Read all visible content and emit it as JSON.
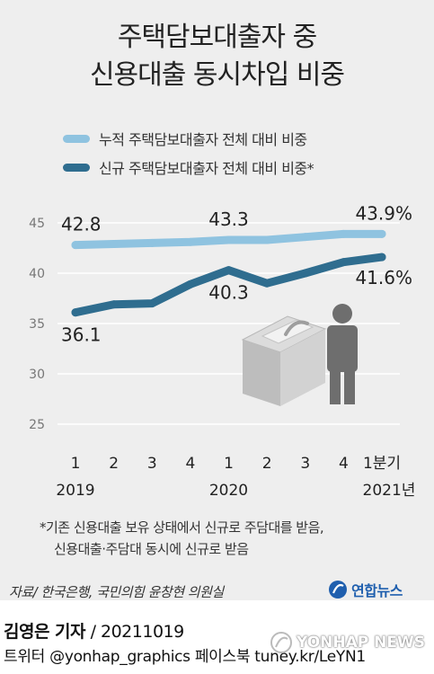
{
  "header": {
    "title_line1": "주택담보대출자 중",
    "title_line2": "신용대출 동시차입 비중"
  },
  "colors": {
    "background": "#eeeeee",
    "series_cumulative": "#8fc3e0",
    "series_new": "#2f6d8f"
  },
  "chart_data": {
    "type": "line",
    "x_ticks": [
      "1",
      "2",
      "3",
      "4",
      "1",
      "2",
      "3",
      "4",
      "1분기"
    ],
    "x_year_labels": [
      "2019",
      "2020",
      "2021년"
    ],
    "ylim": [
      25,
      45
    ],
    "y_ticks": [
      25,
      30,
      35,
      40,
      45
    ],
    "series": [
      {
        "name": "누적 주택담보대출자 전체 대비 비중",
        "values": [
          42.8,
          42.9,
          43.0,
          43.1,
          43.3,
          43.3,
          43.6,
          43.9,
          43.9
        ]
      },
      {
        "name": "신규 주택담보대출자 전체 대비 비중*",
        "values": [
          36.1,
          36.9,
          37.0,
          38.9,
          40.3,
          39.0,
          40.0,
          41.1,
          41.6
        ]
      }
    ],
    "data_labels": [
      {
        "series": 0,
        "index": 0,
        "text": "42.8"
      },
      {
        "series": 0,
        "index": 4,
        "text": "43.3"
      },
      {
        "series": 0,
        "index": 8,
        "text": "43.9%"
      },
      {
        "series": 1,
        "index": 0,
        "text": "36.1"
      },
      {
        "series": 1,
        "index": 4,
        "text": "40.3"
      },
      {
        "series": 1,
        "index": 8,
        "text": "41.6%"
      }
    ],
    "grid": true,
    "legend_placement": "top"
  },
  "notes": {
    "line1": "*기존 신용대출 보유 상태에서 신규로 주담대를 받음,",
    "line2": "신용대출·주담대 동시에 신규로 받음"
  },
  "source": "자료/ 한국은행, 국민의힘 윤창현 의원실",
  "logo_text": "연합뉴스",
  "footer": {
    "reporter": "김영은 기자",
    "date": "/ 20211019",
    "social": "트위터 @yonhap_graphics  페이스북 tuney.kr/LeYN1",
    "watermark": "YONHAP NEWS"
  }
}
